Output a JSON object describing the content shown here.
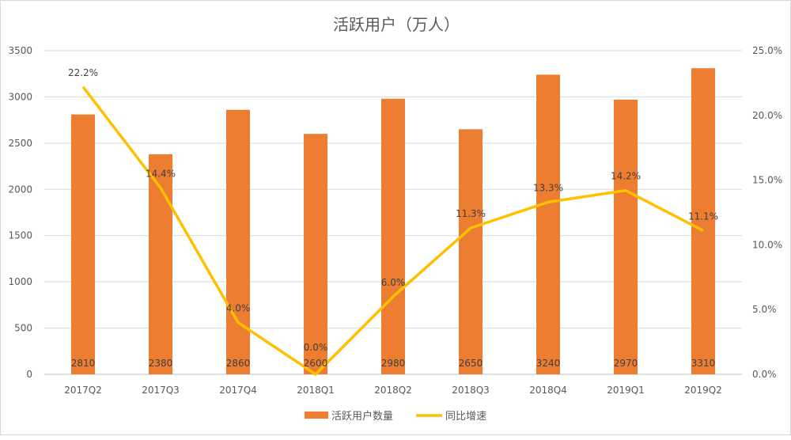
{
  "chart_data": {
    "type": "bar+line",
    "title": "活跃用户（万人）",
    "categories": [
      "2017Q2",
      "2017Q3",
      "2017Q4",
      "2018Q1",
      "2018Q2",
      "2018Q3",
      "2018Q4",
      "2019Q1",
      "2019Q2"
    ],
    "series": [
      {
        "name": "活跃用户数量",
        "type": "bar",
        "axis": "left",
        "color": "#ed7d31",
        "values": [
          2810,
          2380,
          2860,
          2600,
          2980,
          2650,
          3240,
          2970,
          3310
        ],
        "labels": [
          "2810",
          "2380",
          "2860",
          "2600",
          "2980",
          "2650",
          "3240",
          "2970",
          "3310"
        ]
      },
      {
        "name": "同比增速",
        "type": "line",
        "axis": "right",
        "color": "#ffc000",
        "values": [
          22.2,
          14.4,
          4.0,
          0.0,
          6.0,
          11.3,
          13.3,
          14.2,
          11.1
        ],
        "labels": [
          "22.2%",
          "14.4%",
          "4.0%",
          "0.0%",
          "6.0%",
          "11.3%",
          "13.3%",
          "14.2%",
          "11.1%"
        ]
      }
    ],
    "left_axis": {
      "ylim": [
        0,
        3500
      ],
      "ticks": [
        "0",
        "500",
        "1000",
        "1500",
        "2000",
        "2500",
        "3000",
        "3500"
      ]
    },
    "right_axis": {
      "ylim": [
        0,
        25
      ],
      "ticks": [
        "0.0%",
        "5.0%",
        "10.0%",
        "15.0%",
        "20.0%",
        "25.0%"
      ]
    },
    "grid": true,
    "legend": "bottom"
  }
}
